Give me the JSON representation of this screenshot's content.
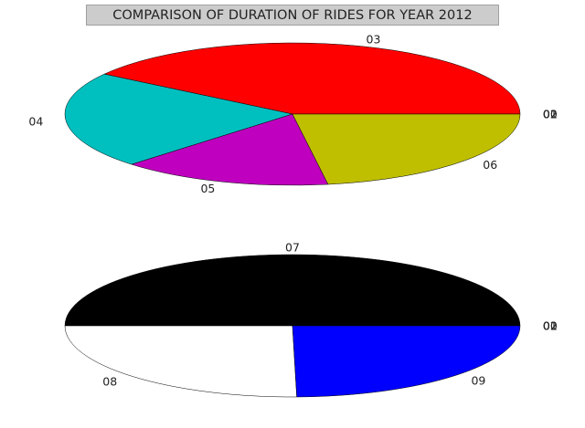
{
  "chart_data": {
    "type": "pie",
    "title": "COMPARISON OF DURATION OF RIDES FOR YEAR 2012",
    "charts": [
      {
        "slices": [
          {
            "label": "03",
            "value": 40.5,
            "color": "#ff0000"
          },
          {
            "label": "04",
            "value": 22.0,
            "color": "#00bfbf"
          },
          {
            "label": "05",
            "value": 15.0,
            "color": "#bf00bf"
          },
          {
            "label": "06",
            "value": 22.5,
            "color": "#bfbf00"
          },
          {
            "label": "00",
            "value": 0,
            "color": "#000000"
          },
          {
            "label": "01",
            "value": 0,
            "color": "#000000"
          },
          {
            "label": "02",
            "value": 0,
            "color": "#000000"
          }
        ]
      },
      {
        "slices": [
          {
            "label": "07",
            "value": 50.0,
            "color": "#000000"
          },
          {
            "label": "08",
            "value": 25.3,
            "color": "#ffffff"
          },
          {
            "label": "09",
            "value": 24.7,
            "color": "#0000ff"
          },
          {
            "label": "00",
            "value": 0,
            "color": "#000000"
          },
          {
            "label": "01",
            "value": 0,
            "color": "#000000"
          },
          {
            "label": "02",
            "value": 0,
            "color": "#000000"
          }
        ]
      }
    ]
  }
}
